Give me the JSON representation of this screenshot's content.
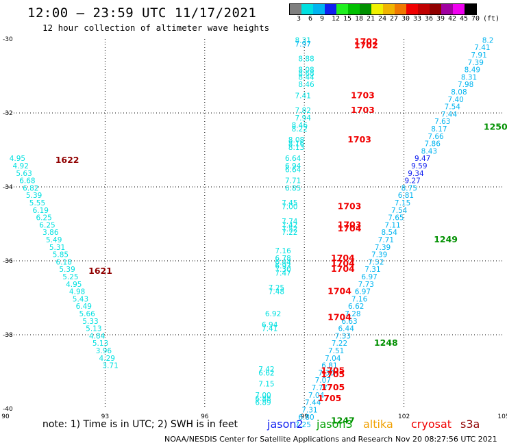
{
  "header": {
    "title": "12:00 – 23:59 UTC 11/17/2021",
    "subtitle": "12 hour collection of altimeter wave heights"
  },
  "legend": {
    "swatch_colors": [
      "#7f7f7f",
      "#00e0e0",
      "#00b4f0",
      "#1020f0",
      "#20f020",
      "#00c000",
      "#009000",
      "#f0f000",
      "#f0b400",
      "#f07800",
      "#f00000",
      "#c00000",
      "#900000",
      "#a000a0",
      "#f000f0",
      "#000000"
    ],
    "labels": [
      "3",
      "6",
      "9",
      "12",
      "15",
      "18",
      "21",
      "24",
      "27",
      "30",
      "33",
      "36",
      "39",
      "42",
      "45",
      "70",
      "(ft)"
    ]
  },
  "axes": {
    "x_ticks": [
      "90",
      "93",
      "96",
      "99",
      "102",
      "105"
    ],
    "y_ticks": [
      "-30",
      "-32",
      "-34",
      "-36",
      "-38",
      "-40"
    ]
  },
  "chart_data": {
    "type": "scatter",
    "xlim": [
      90,
      105
    ],
    "ylim": [
      -40,
      -30
    ],
    "grid": true,
    "swh_points": [
      {
        "x": 104.7,
        "y": -30.1,
        "v": "8.2",
        "c": "#00b4f0"
      },
      {
        "x": 104.6,
        "y": -30.3,
        "v": "7.41",
        "c": "#00b4f0"
      },
      {
        "x": 104.5,
        "y": -30.5,
        "v": "7.91",
        "c": "#00b4f0"
      },
      {
        "x": 104.4,
        "y": -30.7,
        "v": "7.39",
        "c": "#00b4f0"
      },
      {
        "x": 104.3,
        "y": -30.9,
        "v": "8.49",
        "c": "#00b4f0"
      },
      {
        "x": 104.2,
        "y": -31.1,
        "v": "8.31",
        "c": "#00b4f0"
      },
      {
        "x": 104.1,
        "y": -31.3,
        "v": "7.98",
        "c": "#00b4f0"
      },
      {
        "x": 103.9,
        "y": -31.5,
        "v": "8.08",
        "c": "#00b4f0"
      },
      {
        "x": 103.8,
        "y": -31.7,
        "v": "7.40",
        "c": "#00b4f0"
      },
      {
        "x": 103.7,
        "y": -31.9,
        "v": "7.54",
        "c": "#00b4f0"
      },
      {
        "x": 103.6,
        "y": -32.1,
        "v": "7.44",
        "c": "#00b4f0"
      },
      {
        "x": 103.4,
        "y": -32.3,
        "v": "7.63",
        "c": "#00b4f0"
      },
      {
        "x": 103.3,
        "y": -32.5,
        "v": "8.17",
        "c": "#00b4f0"
      },
      {
        "x": 103.2,
        "y": -32.7,
        "v": "7.66",
        "c": "#00b4f0"
      },
      {
        "x": 103.1,
        "y": -32.9,
        "v": "7.86",
        "c": "#00b4f0"
      },
      {
        "x": 103.0,
        "y": -33.1,
        "v": "8.43",
        "c": "#00b4f0"
      },
      {
        "x": 102.8,
        "y": -33.3,
        "v": "9.47",
        "c": "#1020f0"
      },
      {
        "x": 102.7,
        "y": -33.5,
        "v": "9.59",
        "c": "#1020f0"
      },
      {
        "x": 102.6,
        "y": -33.7,
        "v": "9.34",
        "c": "#1020f0"
      },
      {
        "x": 102.5,
        "y": -33.9,
        "v": "9.27",
        "c": "#1020f0"
      },
      {
        "x": 102.4,
        "y": -34.1,
        "v": "8.75",
        "c": "#00b4f0"
      },
      {
        "x": 102.3,
        "y": -34.3,
        "v": "6.81",
        "c": "#00b4f0"
      },
      {
        "x": 102.2,
        "y": -34.5,
        "v": "7.15",
        "c": "#00b4f0"
      },
      {
        "x": 102.1,
        "y": -34.7,
        "v": "7.54",
        "c": "#00b4f0"
      },
      {
        "x": 102.0,
        "y": -34.9,
        "v": "7.65",
        "c": "#00b4f0"
      },
      {
        "x": 101.9,
        "y": -35.1,
        "v": "7.11",
        "c": "#00b4f0"
      },
      {
        "x": 101.8,
        "y": -35.3,
        "v": "8.54",
        "c": "#00b4f0"
      },
      {
        "x": 101.7,
        "y": -35.5,
        "v": "7.71",
        "c": "#00b4f0"
      },
      {
        "x": 101.6,
        "y": -35.7,
        "v": "7.39",
        "c": "#00b4f0"
      },
      {
        "x": 101.5,
        "y": -35.9,
        "v": "7.39",
        "c": "#00b4f0"
      },
      {
        "x": 101.4,
        "y": -36.1,
        "v": "7.52",
        "c": "#00b4f0"
      },
      {
        "x": 101.3,
        "y": -36.3,
        "v": "7.31",
        "c": "#00b4f0"
      },
      {
        "x": 101.2,
        "y": -36.5,
        "v": "6.97",
        "c": "#00b4f0"
      },
      {
        "x": 101.1,
        "y": -36.7,
        "v": "7.73",
        "c": "#00b4f0"
      },
      {
        "x": 101.0,
        "y": -36.9,
        "v": "6.97",
        "c": "#00b4f0"
      },
      {
        "x": 100.9,
        "y": -37.1,
        "v": "7.16",
        "c": "#00b4f0"
      },
      {
        "x": 100.8,
        "y": -37.3,
        "v": "6.62",
        "c": "#00b4f0"
      },
      {
        "x": 100.7,
        "y": -37.5,
        "v": "7.28",
        "c": "#00b4f0"
      },
      {
        "x": 100.6,
        "y": -37.7,
        "v": "6.63",
        "c": "#00b4f0"
      },
      {
        "x": 100.5,
        "y": -37.9,
        "v": "6.44",
        "c": "#00b4f0"
      },
      {
        "x": 100.4,
        "y": -38.1,
        "v": "7.33",
        "c": "#00b4f0"
      },
      {
        "x": 100.3,
        "y": -38.3,
        "v": "7.22",
        "c": "#00b4f0"
      },
      {
        "x": 100.2,
        "y": -38.5,
        "v": "7.51",
        "c": "#00b4f0"
      },
      {
        "x": 100.1,
        "y": -38.7,
        "v": "7.04",
        "c": "#00b4f0"
      },
      {
        "x": 100.0,
        "y": -38.9,
        "v": "6.81",
        "c": "#00b4f0"
      },
      {
        "x": 99.9,
        "y": -39.1,
        "v": "7.30",
        "c": "#00b4f0"
      },
      {
        "x": 99.8,
        "y": -39.3,
        "v": "7.07",
        "c": "#00b4f0"
      },
      {
        "x": 99.7,
        "y": -39.5,
        "v": "7.77",
        "c": "#00b4f0"
      },
      {
        "x": 99.6,
        "y": -39.7,
        "v": "7.04",
        "c": "#00b4f0"
      },
      {
        "x": 99.5,
        "y": -39.9,
        "v": "7.44",
        "c": "#00b4f0"
      },
      {
        "x": 99.4,
        "y": -40.1,
        "v": "7.31",
        "c": "#00b4f0"
      },
      {
        "x": 99.3,
        "y": -40.3,
        "v": "6.80",
        "c": "#00b4f0"
      },
      {
        "x": 99.2,
        "y": -40.5,
        "v": "7.25",
        "c": "#00b4f0"
      },
      {
        "x": 99.2,
        "y": -30.1,
        "v": "8.31",
        "c": "#00e0e0"
      },
      {
        "x": 99.2,
        "y": -30.2,
        "v": "7.97",
        "c": "#00b4f0"
      },
      {
        "x": 99.3,
        "y": -30.6,
        "v": "8.88",
        "c": "#00e0e0"
      },
      {
        "x": 99.3,
        "y": -30.9,
        "v": "8.08",
        "c": "#00e0e0"
      },
      {
        "x": 99.3,
        "y": -31.0,
        "v": "8.68",
        "c": "#00e0e0"
      },
      {
        "x": 99.3,
        "y": -31.1,
        "v": "8.44",
        "c": "#00e0e0"
      },
      {
        "x": 99.3,
        "y": -31.3,
        "v": "8.46",
        "c": "#00e0e0"
      },
      {
        "x": 99.2,
        "y": -31.6,
        "v": "7.41",
        "c": "#00e0e0"
      },
      {
        "x": 99.2,
        "y": -32.0,
        "v": "7.82",
        "c": "#00e0e0"
      },
      {
        "x": 99.2,
        "y": -32.2,
        "v": "7.94",
        "c": "#00e0e0"
      },
      {
        "x": 99.1,
        "y": -32.4,
        "v": "8.46",
        "c": "#00e0e0"
      },
      {
        "x": 99.1,
        "y": -32.5,
        "v": "8.22",
        "c": "#00e0e0"
      },
      {
        "x": 99.0,
        "y": -32.8,
        "v": "8.08",
        "c": "#00e0e0"
      },
      {
        "x": 99.0,
        "y": -32.9,
        "v": "8.16",
        "c": "#00e0e0"
      },
      {
        "x": 99.0,
        "y": -33.0,
        "v": "8.13",
        "c": "#00e0e0"
      },
      {
        "x": 98.9,
        "y": -33.3,
        "v": "6.64",
        "c": "#00e0e0"
      },
      {
        "x": 98.9,
        "y": -33.5,
        "v": "6.94",
        "c": "#00e0e0"
      },
      {
        "x": 98.9,
        "y": -33.6,
        "v": "6.64",
        "c": "#00e0e0"
      },
      {
        "x": 98.9,
        "y": -33.9,
        "v": "7.71",
        "c": "#00e0e0"
      },
      {
        "x": 98.9,
        "y": -34.1,
        "v": "6.85",
        "c": "#00e0e0"
      },
      {
        "x": 98.8,
        "y": -34.5,
        "v": "7.45",
        "c": "#00e0e0"
      },
      {
        "x": 98.8,
        "y": -34.6,
        "v": "7.00",
        "c": "#00e0e0"
      },
      {
        "x": 98.8,
        "y": -35.0,
        "v": "7.74",
        "c": "#00e0e0"
      },
      {
        "x": 98.8,
        "y": -35.1,
        "v": "7.42",
        "c": "#00e0e0"
      },
      {
        "x": 98.8,
        "y": -35.2,
        "v": "7.52",
        "c": "#00e0e0"
      },
      {
        "x": 98.8,
        "y": -35.3,
        "v": "7.22",
        "c": "#00e0e0"
      },
      {
        "x": 98.6,
        "y": -35.8,
        "v": "7.16",
        "c": "#00e0e0"
      },
      {
        "x": 98.6,
        "y": -36.0,
        "v": "6.78",
        "c": "#00e0e0"
      },
      {
        "x": 98.6,
        "y": -36.1,
        "v": "6.44",
        "c": "#00e0e0"
      },
      {
        "x": 98.6,
        "y": -36.2,
        "v": "6.93",
        "c": "#00e0e0"
      },
      {
        "x": 98.6,
        "y": -36.3,
        "v": "7.30",
        "c": "#00e0e0"
      },
      {
        "x": 98.6,
        "y": -36.4,
        "v": "7.47",
        "c": "#00e0e0"
      },
      {
        "x": 98.4,
        "y": -36.8,
        "v": "7.25",
        "c": "#00e0e0"
      },
      {
        "x": 98.4,
        "y": -36.9,
        "v": "7.48",
        "c": "#00e0e0"
      },
      {
        "x": 98.3,
        "y": -37.5,
        "v": "6.92",
        "c": "#00e0e0"
      },
      {
        "x": 98.2,
        "y": -37.8,
        "v": "6.94",
        "c": "#00e0e0"
      },
      {
        "x": 98.2,
        "y": -37.9,
        "v": "7.41",
        "c": "#00e0e0"
      },
      {
        "x": 98.1,
        "y": -39.0,
        "v": "7.42",
        "c": "#00e0e0"
      },
      {
        "x": 98.1,
        "y": -39.1,
        "v": "6.62",
        "c": "#00e0e0"
      },
      {
        "x": 98.1,
        "y": -39.4,
        "v": "7.15",
        "c": "#00e0e0"
      },
      {
        "x": 98.0,
        "y": -39.7,
        "v": "7.00",
        "c": "#00e0e0"
      },
      {
        "x": 98.0,
        "y": -39.8,
        "v": "6.88",
        "c": "#00e0e0"
      },
      {
        "x": 98.0,
        "y": -39.9,
        "v": "6.89",
        "c": "#00e0e0"
      },
      {
        "x": 90.6,
        "y": -33.3,
        "v": "4.95",
        "c": "#00e0e0"
      },
      {
        "x": 90.7,
        "y": -33.5,
        "v": "4.92",
        "c": "#00e0e0"
      },
      {
        "x": 90.8,
        "y": -33.7,
        "v": "5.63",
        "c": "#00e0e0"
      },
      {
        "x": 90.9,
        "y": -33.9,
        "v": "6.68",
        "c": "#00e0e0"
      },
      {
        "x": 91.0,
        "y": -34.1,
        "v": "6.82",
        "c": "#00e0e0"
      },
      {
        "x": 91.1,
        "y": -34.3,
        "v": "5.39",
        "c": "#00e0e0"
      },
      {
        "x": 91.2,
        "y": -34.5,
        "v": "5.55",
        "c": "#00e0e0"
      },
      {
        "x": 91.3,
        "y": -34.7,
        "v": "6.19",
        "c": "#00e0e0"
      },
      {
        "x": 91.4,
        "y": -34.9,
        "v": "6.25",
        "c": "#00e0e0"
      },
      {
        "x": 91.5,
        "y": -35.1,
        "v": "6.25",
        "c": "#00e0e0"
      },
      {
        "x": 91.6,
        "y": -35.3,
        "v": "3.86",
        "c": "#00e0e0"
      },
      {
        "x": 91.7,
        "y": -35.5,
        "v": "5.49",
        "c": "#00e0e0"
      },
      {
        "x": 91.8,
        "y": -35.7,
        "v": "5.31",
        "c": "#00e0e0"
      },
      {
        "x": 91.9,
        "y": -35.9,
        "v": "5.85",
        "c": "#00e0e0"
      },
      {
        "x": 92.0,
        "y": -36.1,
        "v": "6.18",
        "c": "#00e0e0"
      },
      {
        "x": 92.1,
        "y": -36.3,
        "v": "5.39",
        "c": "#00e0e0"
      },
      {
        "x": 92.2,
        "y": -36.5,
        "v": "5.25",
        "c": "#00e0e0"
      },
      {
        "x": 92.3,
        "y": -36.7,
        "v": "4.95",
        "c": "#00e0e0"
      },
      {
        "x": 92.4,
        "y": -36.9,
        "v": "4.98",
        "c": "#00e0e0"
      },
      {
        "x": 92.5,
        "y": -37.1,
        "v": "5.43",
        "c": "#00e0e0"
      },
      {
        "x": 92.6,
        "y": -37.3,
        "v": "6.49",
        "c": "#00e0e0"
      },
      {
        "x": 92.7,
        "y": -37.5,
        "v": "5.66",
        "c": "#00e0e0"
      },
      {
        "x": 92.8,
        "y": -37.7,
        "v": "5.33",
        "c": "#00e0e0"
      },
      {
        "x": 92.9,
        "y": -37.9,
        "v": "5.13",
        "c": "#00e0e0"
      },
      {
        "x": 93.0,
        "y": -38.1,
        "v": "4.84",
        "c": "#00e0e0"
      },
      {
        "x": 93.1,
        "y": -38.3,
        "v": "5.13",
        "c": "#00e0e0"
      },
      {
        "x": 93.2,
        "y": -38.5,
        "v": "3.96",
        "c": "#00e0e0"
      },
      {
        "x": 93.3,
        "y": -38.7,
        "v": "4.29",
        "c": "#00e0e0"
      },
      {
        "x": 93.4,
        "y": -38.9,
        "v": "3.71",
        "c": "#00e0e0"
      }
    ],
    "time_labels": [
      {
        "x": 100.5,
        "y": -30.15,
        "t": "1702",
        "c": "#f00000"
      },
      {
        "x": 100.5,
        "y": -30.25,
        "t": "1702",
        "c": "#f00000"
      },
      {
        "x": 100.4,
        "y": -31.6,
        "t": "1703",
        "c": "#f00000"
      },
      {
        "x": 100.4,
        "y": -32.0,
        "t": "1703",
        "c": "#f00000"
      },
      {
        "x": 100.3,
        "y": -32.8,
        "t": "1703",
        "c": "#f00000"
      },
      {
        "x": 100.0,
        "y": -34.6,
        "t": "1703",
        "c": "#f00000"
      },
      {
        "x": 100.0,
        "y": -35.1,
        "t": "1703",
        "c": "#f00000"
      },
      {
        "x": 100.0,
        "y": -35.2,
        "t": "1704",
        "c": "#f00000"
      },
      {
        "x": 99.8,
        "y": -36.0,
        "t": "1704",
        "c": "#f00000"
      },
      {
        "x": 99.8,
        "y": -36.15,
        "t": "1704",
        "c": "#f00000"
      },
      {
        "x": 99.8,
        "y": -36.3,
        "t": "1704",
        "c": "#f00000"
      },
      {
        "x": 99.7,
        "y": -36.9,
        "t": "1704",
        "c": "#f00000"
      },
      {
        "x": 99.7,
        "y": -37.6,
        "t": "1704",
        "c": "#f00000"
      },
      {
        "x": 99.5,
        "y": -39.05,
        "t": "1705",
        "c": "#f00000"
      },
      {
        "x": 99.5,
        "y": -39.15,
        "t": "1705",
        "c": "#f00000"
      },
      {
        "x": 99.5,
        "y": -39.5,
        "t": "1705",
        "c": "#f00000"
      },
      {
        "x": 99.4,
        "y": -39.8,
        "t": "1705",
        "c": "#f00000"
      },
      {
        "x": 91.5,
        "y": -33.35,
        "t": "1622",
        "c": "#900000"
      },
      {
        "x": 92.5,
        "y": -36.35,
        "t": "1621",
        "c": "#900000"
      },
      {
        "x": 104.4,
        "y": -32.45,
        "t": "1250",
        "c": "#009000"
      },
      {
        "x": 102.9,
        "y": -35.5,
        "t": "1249",
        "c": "#009000"
      },
      {
        "x": 101.1,
        "y": -38.3,
        "t": "1248",
        "c": "#009000"
      },
      {
        "x": 99.8,
        "y": -40.4,
        "t": "1247",
        "c": "#009000"
      }
    ]
  },
  "footer": {
    "note": "note: 1) Time is in UTC; 2) SWH is in feet",
    "satellites": [
      {
        "name": "jason2",
        "color": "#1020f0"
      },
      {
        "name": "jason3",
        "color": "#00a000"
      },
      {
        "name": "altika",
        "color": "#f0a000"
      },
      {
        "name": "cryosat",
        "color": "#f00000"
      },
      {
        "name": "s3a",
        "color": "#900000"
      }
    ],
    "credit": "NOAA/NESDIS Center for Satellite Applications and Research",
    "generated": "Nov 20 08:27:56 UTC 2021"
  }
}
